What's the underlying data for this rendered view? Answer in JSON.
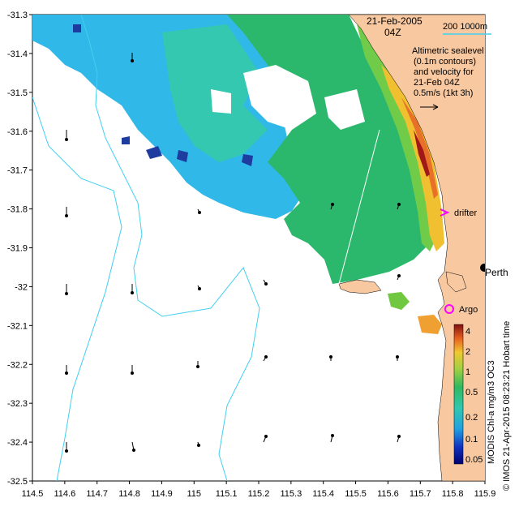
{
  "header": {
    "date": "21-Feb-2005",
    "time": "04Z",
    "isobath_label": "200  1000m",
    "legend_lines": [
      "Altimetric sealevel",
      "(0.1m contours)",
      "and velocity for",
      "21-Feb 04Z",
      "0.5m/s (1kt 3h)"
    ]
  },
  "places": {
    "perth": "Perth",
    "drifter": "drifter",
    "argo": "Argo"
  },
  "colorbar": {
    "ticks": [
      "4",
      "2",
      "1",
      "0.5",
      "0.2",
      "0.1",
      "0.05"
    ],
    "label": "MODIS Chl-a mg/m3 OC3"
  },
  "credit": "© IMOS 21-Apr-2015 08:23:21 Hobart time",
  "axes": {
    "x_ticks": [
      "114.5",
      "114.6",
      "114.7",
      "114.8",
      "114.9",
      "115",
      "115.1",
      "115.2",
      "115.3",
      "115.4",
      "115.5",
      "115.6",
      "115.7",
      "115.8",
      "115.9"
    ],
    "y_ticks": [
      "-31.3",
      "-31.4",
      "-31.5",
      "-31.6",
      "-31.7",
      "-31.8",
      "-31.9",
      "-32",
      "-32.1",
      "-32.2",
      "-32.3",
      "-32.4",
      "-32.5"
    ]
  },
  "colors": {
    "land": "#f8c8a0",
    "isobath": "#40d0f0",
    "chl_low": "#1e3ca0",
    "chl_mid": "#2cb88c",
    "chl_high": "#f0b030",
    "drifter": "#ff00ff",
    "argo": "#ff00ff"
  }
}
